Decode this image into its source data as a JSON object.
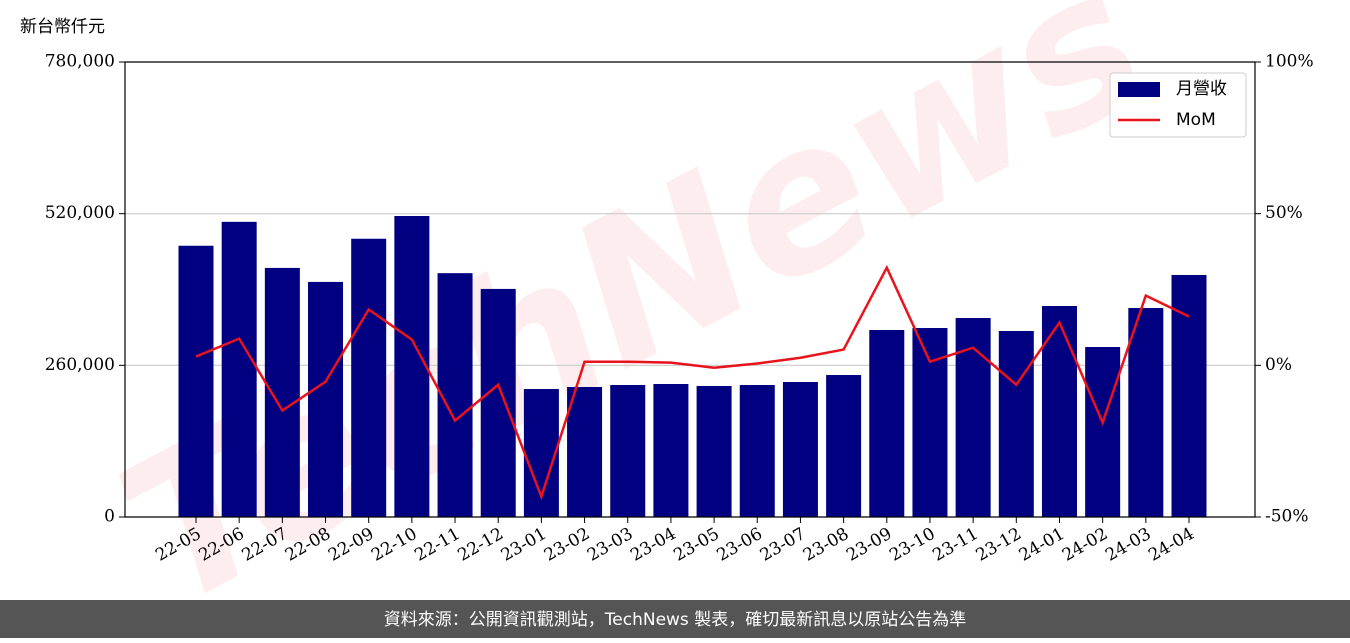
{
  "chart_data": {
    "type": "bar_line",
    "ylabel": "新台幣仟元",
    "watermark": "TechNews",
    "source": "資料來源：公開資訊觀測站，TechNews 製表，確切最新訊息以原站公告為準",
    "categories": [
      "22-05",
      "22-06",
      "22-07",
      "22-08",
      "22-09",
      "22-10",
      "22-11",
      "22-12",
      "23-01",
      "23-02",
      "23-03",
      "23-04",
      "23-05",
      "23-06",
      "23-07",
      "23-08",
      "23-09",
      "23-10",
      "23-11",
      "23-12",
      "24-01",
      "24-02",
      "24-03",
      "24-04"
    ],
    "series": [
      {
        "name": "月營收",
        "color": "#000080",
        "type": "bar",
        "values": [
          465000,
          506000,
          427000,
          403000,
          477000,
          516000,
          418000,
          391000,
          219400,
          222900,
          226300,
          228000,
          224600,
          226300,
          231400,
          243400,
          320600,
          324000,
          341100,
          318900,
          361700,
          291400,
          358300,
          414900
        ]
      },
      {
        "name": "MoM",
        "color": "#e8131b",
        "type": "line",
        "axis": "y2",
        "values": [
          2.9,
          8.8,
          -14.9,
          -5.4,
          18.4,
          8.5,
          -18.2,
          -6.4,
          -43.3,
          1.2,
          1.2,
          0.9,
          -0.8,
          0.6,
          2.5,
          5.2,
          32.2,
          1.2,
          5.8,
          -6.4,
          14.1,
          -18.9,
          23.0,
          16.1
        ]
      }
    ],
    "ylim": [
      0,
      780000
    ],
    "yticks": [
      {
        "value": 0,
        "label": "0"
      },
      {
        "value": 260000,
        "label": "260,000"
      },
      {
        "value": 520000,
        "label": "520,000"
      },
      {
        "value": 780000,
        "label": "780,000"
      }
    ],
    "y2lim": [
      -50,
      100
    ],
    "y2ticks": [
      {
        "value": -50,
        "label": "-50%"
      },
      {
        "value": 0,
        "label": "0%"
      },
      {
        "value": 50,
        "label": "50%"
      },
      {
        "value": 100,
        "label": "100%"
      }
    ],
    "grid": true,
    "legend": "upper right"
  }
}
